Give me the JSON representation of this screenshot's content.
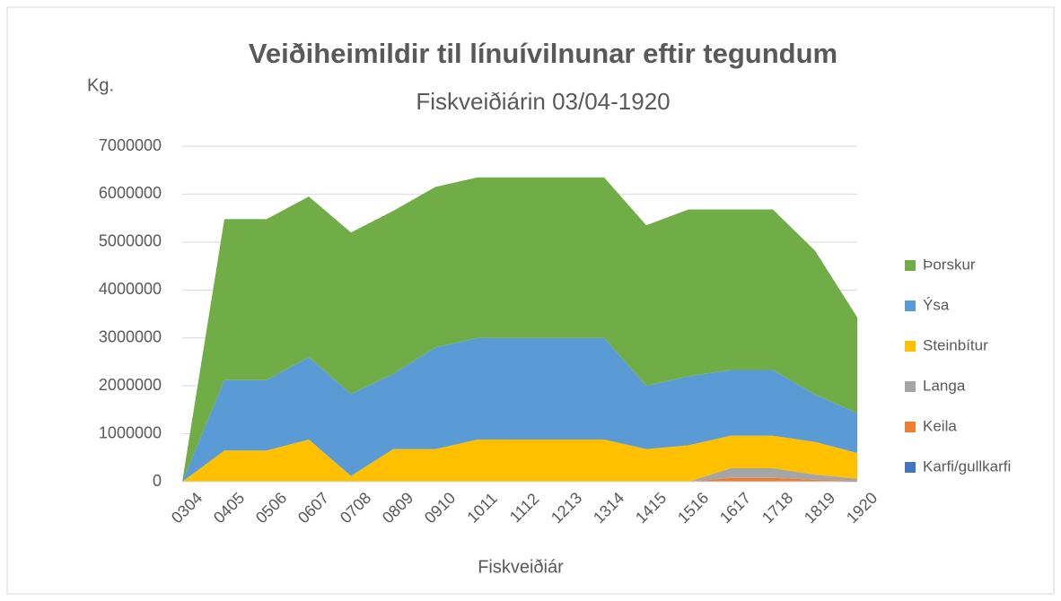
{
  "chart_data": {
    "type": "stacked_area",
    "title": "Veiðiheimildir til línuívilnunar eftir tegundum",
    "subtitle": "Fiskveiðiárin 03/04-1920",
    "y_label": "Kg.",
    "x_label": "Fiskveiðiár",
    "categories": [
      "0304",
      "0405",
      "0506",
      "0607",
      "0708",
      "0809",
      "0910",
      "1011",
      "1112",
      "1213",
      "1314",
      "1415",
      "1516",
      "1617",
      "1718",
      "1819",
      "1920"
    ],
    "series": [
      {
        "name": "Þorskur",
        "color": "#70ad47",
        "values": [
          0,
          3360000,
          3360000,
          3350000,
          3370000,
          3400000,
          3350000,
          3350000,
          3350000,
          3350000,
          3350000,
          3350000,
          3480000,
          3350000,
          3350000,
          3000000,
          2000000
        ]
      },
      {
        "name": "Ýsa",
        "color": "#5b9bd5",
        "values": [
          0,
          1470000,
          1470000,
          1720000,
          1710000,
          1570000,
          2120000,
          2120000,
          2120000,
          2120000,
          2120000,
          1320000,
          1440000,
          1370000,
          1370000,
          990000,
          830000
        ]
      },
      {
        "name": "Steinbítur",
        "color": "#ffc000",
        "values": [
          0,
          650000,
          650000,
          880000,
          120000,
          680000,
          680000,
          880000,
          880000,
          880000,
          880000,
          680000,
          760000,
          680000,
          680000,
          680000,
          540000
        ]
      },
      {
        "name": "Langa",
        "color": "#a5a5a5",
        "values": [
          0,
          0,
          0,
          0,
          0,
          0,
          0,
          0,
          0,
          0,
          0,
          0,
          0,
          200000,
          200000,
          110000,
          30000
        ]
      },
      {
        "name": "Keila",
        "color": "#ed7d31",
        "values": [
          0,
          0,
          0,
          0,
          0,
          0,
          0,
          0,
          0,
          0,
          0,
          0,
          0,
          70000,
          70000,
          30000,
          10000
        ]
      },
      {
        "name": "Karfi/gullkarfi",
        "color": "#4472c4",
        "values": [
          0,
          0,
          0,
          0,
          0,
          0,
          0,
          0,
          0,
          0,
          0,
          0,
          0,
          10000,
          10000,
          10000,
          20000
        ]
      }
    ],
    "ylim": [
      0,
      7000000
    ],
    "yticks": [
      0,
      1000000,
      2000000,
      3000000,
      4000000,
      5000000,
      6000000,
      7000000
    ],
    "grid": true,
    "legend": "right"
  }
}
